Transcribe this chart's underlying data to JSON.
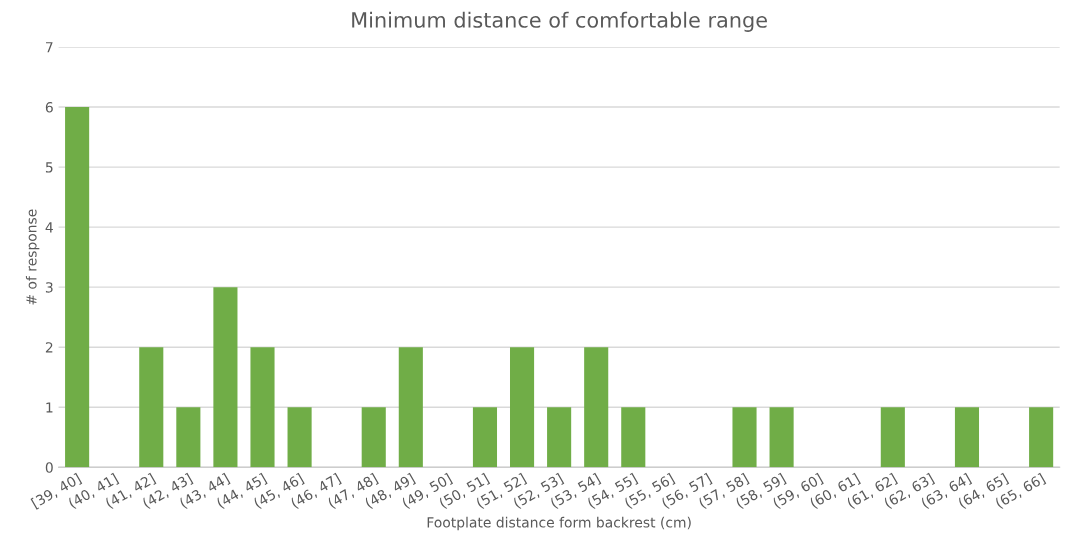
{
  "chart_data": {
    "type": "bar",
    "title": "Minimum distance of comfortable range",
    "xlabel": "Footplate distance form backrest (cm)",
    "ylabel": "# of response",
    "categories": [
      "[39, 40]",
      "(40, 41]",
      "(41, 42]",
      "(42, 43]",
      "(43, 44]",
      "(44, 45]",
      "(45, 46]",
      "(46, 47]",
      "(47, 48]",
      "(48, 49]",
      "(49, 50]",
      "(50, 51]",
      "(51, 52]",
      "(52, 53]",
      "(53, 54]",
      "(54, 55]",
      "(55, 56]",
      "(56, 57]",
      "(57, 58]",
      "(58, 59]",
      "(59, 60]",
      "(60, 61]",
      "(61, 62]",
      "(62, 63]",
      "(63, 64]",
      "(64, 65]",
      "(65, 66]"
    ],
    "values": [
      6,
      0,
      2,
      1,
      3,
      2,
      1,
      0,
      1,
      2,
      0,
      1,
      2,
      1,
      2,
      1,
      0,
      0,
      1,
      1,
      0,
      0,
      1,
      0,
      1,
      0,
      1
    ],
    "color": "#70ad47",
    "ylim": [
      0,
      7
    ],
    "yticks": [
      0,
      1,
      2,
      3,
      4,
      5,
      6,
      7
    ],
    "grid": "y",
    "legend": false
  }
}
